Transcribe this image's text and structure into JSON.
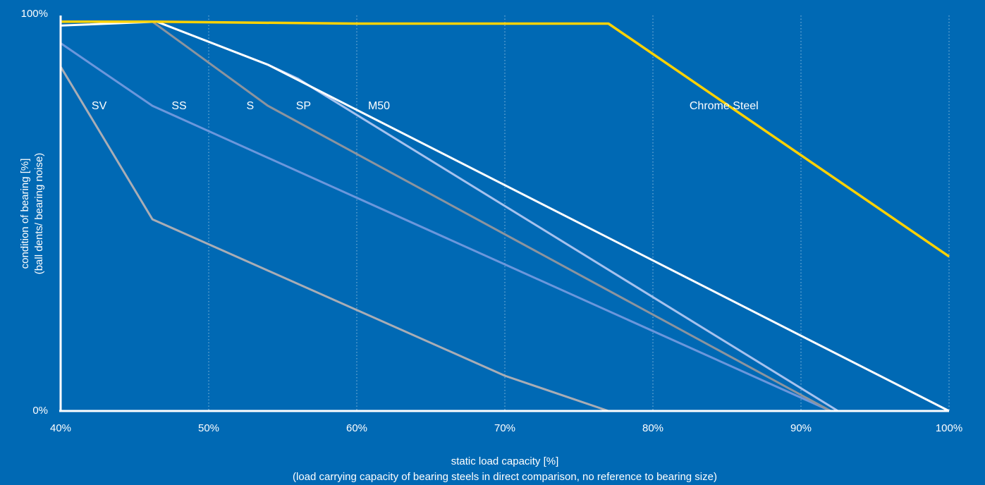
{
  "chart_data": {
    "type": "line",
    "title": "",
    "xlabel": "static load capacity [%]",
    "xlabel_note": "(load carrying capacity of bearing steels in direct comparison, no reference to bearing size)",
    "ylabel": "condition of bearing [%]",
    "ylabel_note": "(ball dents/ bearing noise)",
    "xlim": [
      40,
      100
    ],
    "ylim": [
      0,
      100
    ],
    "grid": "vertical dotted",
    "x_ticks": [
      40,
      50,
      60,
      70,
      80,
      90,
      100
    ],
    "x_tick_labels": [
      "40%",
      "50%",
      "60%",
      "70%",
      "80%",
      "90%",
      "100%"
    ],
    "y_tick_labels": [
      "0%",
      "100%"
    ],
    "series": [
      {
        "name": "SV",
        "color": "#a9adb5",
        "x": [
          40,
          46.2,
          70,
          77
        ],
        "y": [
          88,
          49,
          9,
          0
        ]
      },
      {
        "name": "SS",
        "color": "#6b97dc",
        "x": [
          40,
          46.2,
          92
        ],
        "y": [
          94,
          78,
          0
        ]
      },
      {
        "name": "S",
        "color": "#8c949e",
        "x": [
          46.2,
          54,
          92
        ],
        "y": [
          99.5,
          78,
          0
        ]
      },
      {
        "name": "SP",
        "color": "#a6c2ee",
        "x": [
          54,
          56,
          92.5
        ],
        "y": [
          88.5,
          85,
          0
        ]
      },
      {
        "name": "M50",
        "color": "#ffffff",
        "x": [
          40,
          46.5,
          54,
          100
        ],
        "y": [
          98.5,
          99.5,
          88.5,
          0
        ]
      },
      {
        "name": "Chrome Steel",
        "color": "#ffd200",
        "x": [
          40,
          46.5,
          60,
          77,
          100
        ],
        "y": [
          99.5,
          99.5,
          99,
          99,
          39.5
        ]
      }
    ],
    "labels": [
      {
        "text": "SV",
        "x": 42.6,
        "y": 78
      },
      {
        "text": "SS",
        "x": 48.0,
        "y": 78
      },
      {
        "text": "S",
        "x": 52.8,
        "y": 78
      },
      {
        "text": "SP",
        "x": 56.4,
        "y": 78
      },
      {
        "text": "M50",
        "x": 61.5,
        "y": 78
      },
      {
        "text": "Chrome Steel",
        "x": 84.8,
        "y": 78
      }
    ]
  }
}
